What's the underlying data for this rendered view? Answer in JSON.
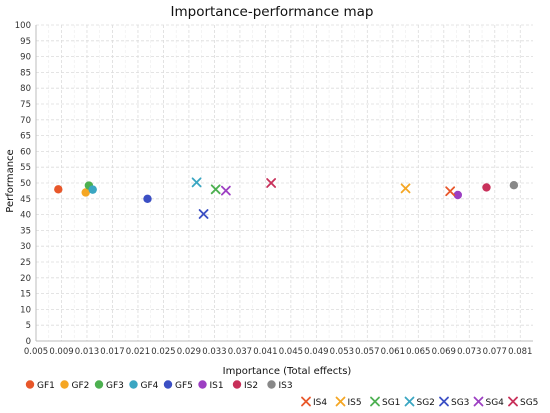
{
  "chart_data": {
    "type": "scatter",
    "title": "Importance-performance map",
    "xlabel": "Importance (Total effects)",
    "ylabel": "Performance",
    "xlim": [
      0.005,
      0.083
    ],
    "ylim": [
      0,
      100
    ],
    "x_ticks": [
      "0.005",
      "0.009",
      "0.013",
      "0.017",
      "0.021",
      "0.025",
      "0.029",
      "0.033",
      "0.037",
      "0.041",
      "0.045",
      "0.049",
      "0.053",
      "0.057",
      "0.061",
      "0.065",
      "0.069",
      "0.073",
      "0.077",
      "0.081"
    ],
    "y_ticks": [
      "0",
      "5",
      "10",
      "15",
      "20",
      "25",
      "30",
      "35",
      "40",
      "45",
      "50",
      "55",
      "60",
      "65",
      "70",
      "75",
      "80",
      "85",
      "90",
      "95",
      "100"
    ],
    "grid": true,
    "legend_position": "bottom",
    "series": [
      {
        "name": "GF1",
        "marker": "circle",
        "color": "#e8572a",
        "x": 0.0085,
        "y": 48.0
      },
      {
        "name": "GF2",
        "marker": "circle",
        "color": "#f5a623",
        "x": 0.0128,
        "y": 47.0
      },
      {
        "name": "GF3",
        "marker": "circle",
        "color": "#4cb050",
        "x": 0.0133,
        "y": 49.2
      },
      {
        "name": "GF4",
        "marker": "circle",
        "color": "#3aa6c2",
        "x": 0.0139,
        "y": 47.9
      },
      {
        "name": "GF5",
        "marker": "circle",
        "color": "#3b4fc4",
        "x": 0.0225,
        "y": 45.0
      },
      {
        "name": "IS1",
        "marker": "circle",
        "color": "#9c3fc2",
        "x": 0.0712,
        "y": 46.2
      },
      {
        "name": "IS2",
        "marker": "circle",
        "color": "#c8305a",
        "x": 0.0757,
        "y": 48.6
      },
      {
        "name": "IS3",
        "marker": "circle",
        "color": "#888888",
        "x": 0.08,
        "y": 49.3
      },
      {
        "name": "IS4",
        "marker": "cross",
        "color": "#e8572a",
        "x": 0.07,
        "y": 47.4
      },
      {
        "name": "IS5",
        "marker": "cross",
        "color": "#f5a623",
        "x": 0.063,
        "y": 48.3
      },
      {
        "name": "SG1",
        "marker": "cross",
        "color": "#4cb050",
        "x": 0.0332,
        "y": 48.0
      },
      {
        "name": "SG2",
        "marker": "cross",
        "color": "#3aa6c2",
        "x": 0.0302,
        "y": 50.2
      },
      {
        "name": "SG3",
        "marker": "cross",
        "color": "#3b4fc4",
        "x": 0.0313,
        "y": 40.2
      },
      {
        "name": "SG4",
        "marker": "cross",
        "color": "#9c3fc2",
        "x": 0.0348,
        "y": 47.6
      },
      {
        "name": "SG5",
        "marker": "cross",
        "color": "#c8305a",
        "x": 0.0419,
        "y": 50.0
      }
    ]
  }
}
